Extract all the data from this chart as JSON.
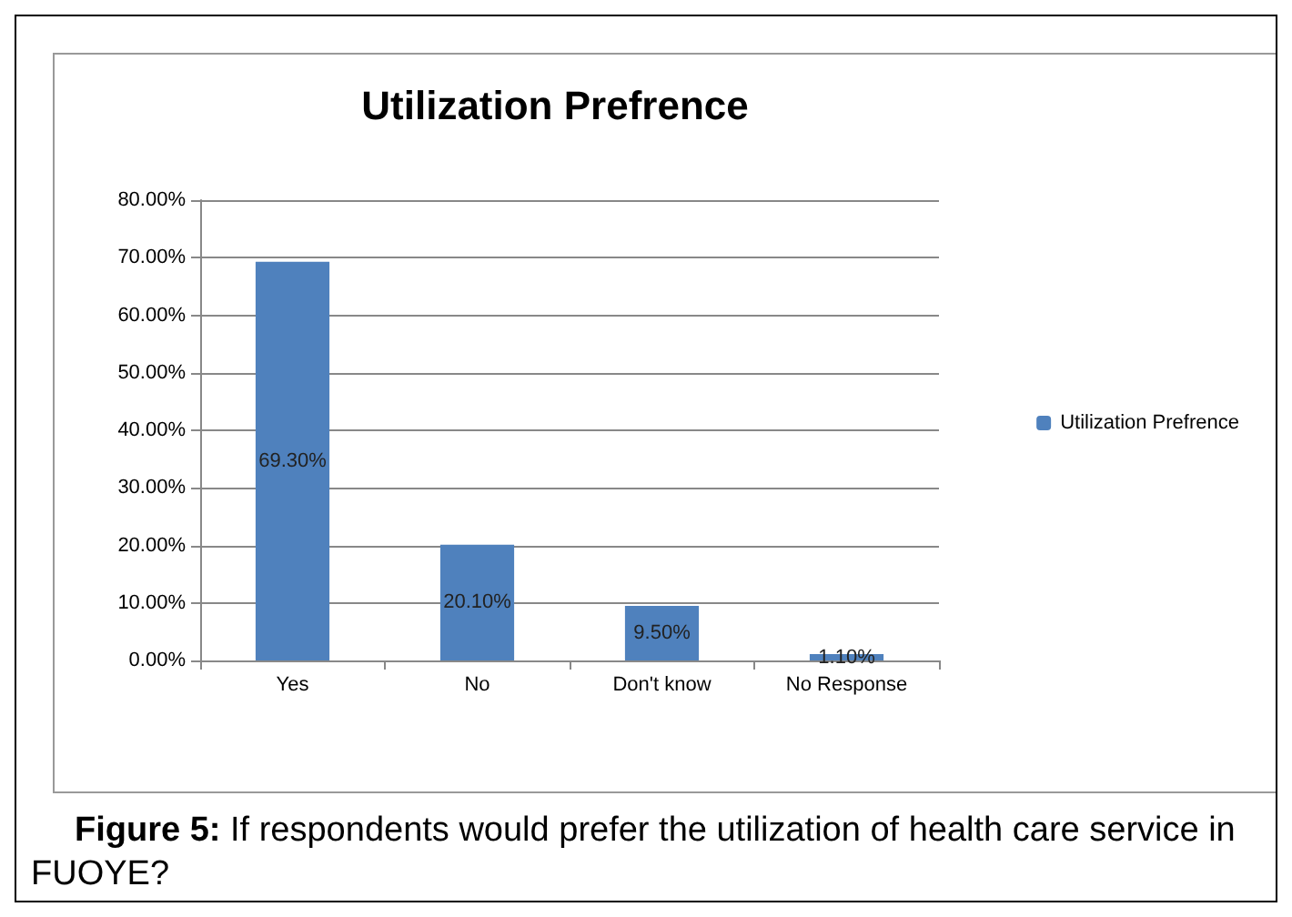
{
  "chart_data": {
    "type": "bar",
    "title": "Utilization Prefrence",
    "categories": [
      "Yes",
      "No",
      "Don't know",
      "No Response"
    ],
    "series": [
      {
        "name": "Utilization Prefrence",
        "color": "#4f81bd",
        "values": [
          69.3,
          20.1,
          9.5,
          1.1
        ],
        "value_labels": [
          "69.30%",
          "20.10%",
          "9.50%",
          "1.10%"
        ]
      }
    ],
    "ylim": [
      0,
      80
    ],
    "yticks": [
      {
        "value": 0,
        "label": "0.00%"
      },
      {
        "value": 10,
        "label": "10.00%"
      },
      {
        "value": 20,
        "label": "20.00%"
      },
      {
        "value": 30,
        "label": "30.00%"
      },
      {
        "value": 40,
        "label": "40.00%"
      },
      {
        "value": 50,
        "label": "50.00%"
      },
      {
        "value": 60,
        "label": "60.00%"
      },
      {
        "value": 70,
        "label": "70.00%"
      },
      {
        "value": 80,
        "label": "80.00%"
      }
    ],
    "grid": "y",
    "legend": "right",
    "annotations": [
      "Figure 5: If respondents would prefer the utilization of health care service in FUOYE?"
    ]
  }
}
